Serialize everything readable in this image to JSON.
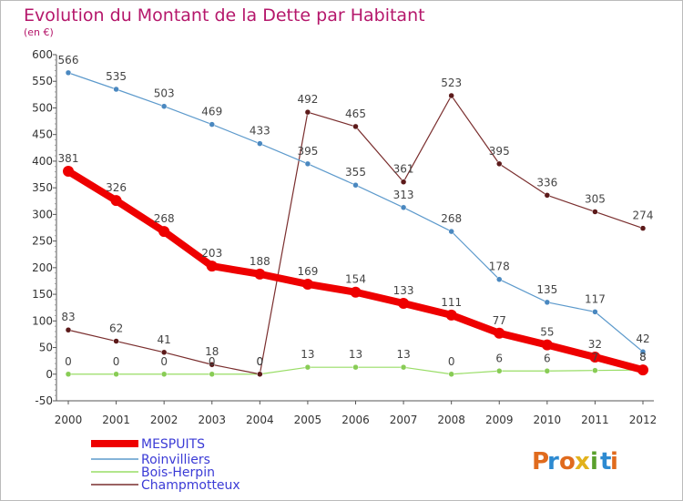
{
  "chart_data": {
    "type": "line",
    "title": "Evolution du Montant de la Dette par Habitant",
    "subtitle": "(en €)",
    "x": [
      "2000",
      "2001",
      "2002",
      "2003",
      "2004",
      "2005",
      "2006",
      "2007",
      "2008",
      "2009",
      "2010",
      "2011",
      "2012"
    ],
    "ylim": [
      -50,
      600
    ],
    "yticks": [
      -50,
      0,
      50,
      100,
      150,
      200,
      250,
      300,
      350,
      400,
      450,
      500,
      550,
      600
    ],
    "grid": false,
    "legend_position": "bottom-left",
    "series": [
      {
        "name": "MESPUITS",
        "color": "#ee0000",
        "values": [
          381,
          326,
          268,
          203,
          188,
          169,
          154,
          133,
          111,
          77,
          55,
          32,
          8
        ]
      },
      {
        "name": "Roinvilliers",
        "color": "#5d9acc",
        "values": [
          566,
          535,
          503,
          469,
          433,
          395,
          355,
          313,
          268,
          178,
          135,
          117,
          42
        ]
      },
      {
        "name": "Bois-Herpin",
        "color": "#99dd66",
        "values": [
          0,
          0,
          0,
          0,
          0,
          13,
          13,
          13,
          0,
          6,
          6,
          7,
          8
        ]
      },
      {
        "name": "Champmotteux",
        "color": "#7a2e2e",
        "values": [
          83,
          62,
          41,
          18,
          0,
          492,
          465,
          361,
          523,
          395,
          336,
          305,
          274
        ]
      }
    ]
  },
  "logo": {
    "text": "Proxiti",
    "letters": [
      "P",
      "r",
      "o",
      "x",
      "i",
      "t",
      "i"
    ],
    "colors": [
      "#e06b1e",
      "#2d8ad1",
      "#e06b1e",
      "#e2b21c",
      "#5aa02c",
      "#2d8ad1",
      "#e06b1e"
    ]
  }
}
